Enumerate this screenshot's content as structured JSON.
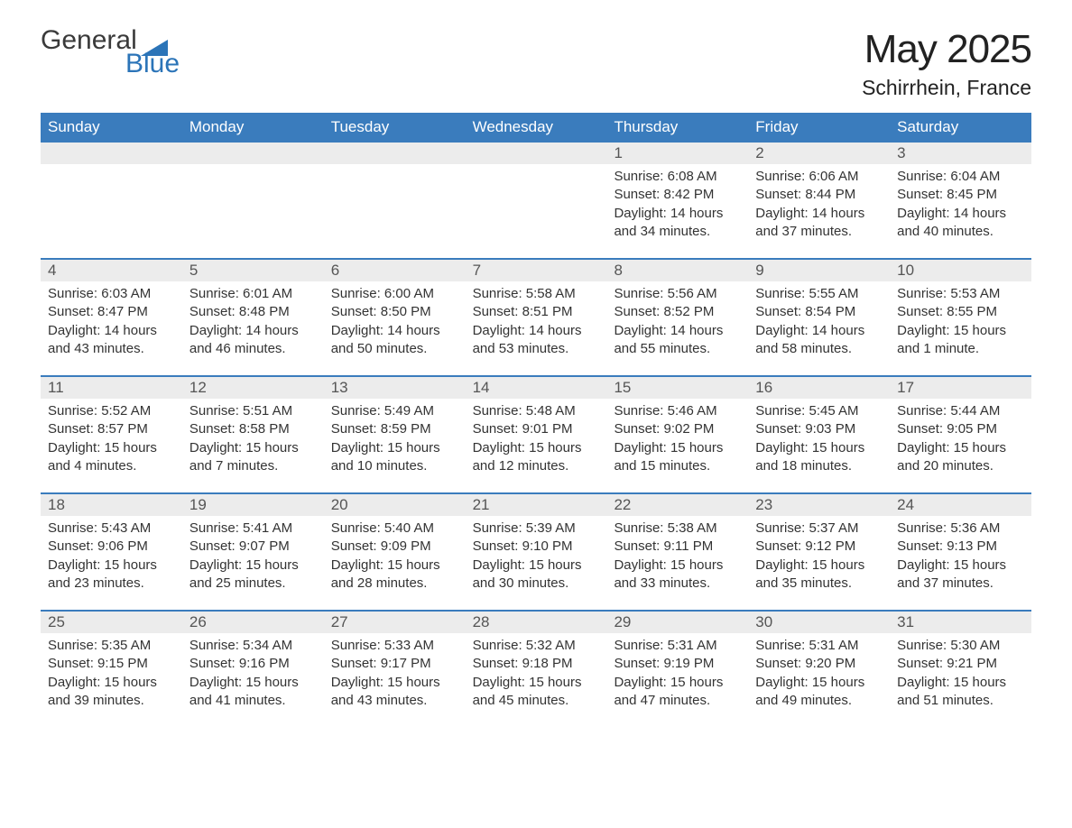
{
  "logo": {
    "word1": "General",
    "word2": "Blue"
  },
  "title": "May 2025",
  "location": "Schirrhein, France",
  "colors": {
    "header_bg": "#3a7cbd",
    "header_text": "#ffffff",
    "day_number_bg": "#ececec",
    "day_number_text": "#555555",
    "week_rule": "#3a7cbd",
    "body_text": "#333333",
    "logo_gray": "#3a3a3a",
    "logo_blue": "#2b74b8",
    "page_bg": "#ffffff"
  },
  "weekdays": [
    "Sunday",
    "Monday",
    "Tuesday",
    "Wednesday",
    "Thursday",
    "Friday",
    "Saturday"
  ],
  "weeks": [
    [
      {
        "n": "",
        "sunrise": "",
        "sunset": "",
        "daylight": ""
      },
      {
        "n": "",
        "sunrise": "",
        "sunset": "",
        "daylight": ""
      },
      {
        "n": "",
        "sunrise": "",
        "sunset": "",
        "daylight": ""
      },
      {
        "n": "",
        "sunrise": "",
        "sunset": "",
        "daylight": ""
      },
      {
        "n": "1",
        "sunrise": "Sunrise: 6:08 AM",
        "sunset": "Sunset: 8:42 PM",
        "daylight": "Daylight: 14 hours and 34 minutes."
      },
      {
        "n": "2",
        "sunrise": "Sunrise: 6:06 AM",
        "sunset": "Sunset: 8:44 PM",
        "daylight": "Daylight: 14 hours and 37 minutes."
      },
      {
        "n": "3",
        "sunrise": "Sunrise: 6:04 AM",
        "sunset": "Sunset: 8:45 PM",
        "daylight": "Daylight: 14 hours and 40 minutes."
      }
    ],
    [
      {
        "n": "4",
        "sunrise": "Sunrise: 6:03 AM",
        "sunset": "Sunset: 8:47 PM",
        "daylight": "Daylight: 14 hours and 43 minutes."
      },
      {
        "n": "5",
        "sunrise": "Sunrise: 6:01 AM",
        "sunset": "Sunset: 8:48 PM",
        "daylight": "Daylight: 14 hours and 46 minutes."
      },
      {
        "n": "6",
        "sunrise": "Sunrise: 6:00 AM",
        "sunset": "Sunset: 8:50 PM",
        "daylight": "Daylight: 14 hours and 50 minutes."
      },
      {
        "n": "7",
        "sunrise": "Sunrise: 5:58 AM",
        "sunset": "Sunset: 8:51 PM",
        "daylight": "Daylight: 14 hours and 53 minutes."
      },
      {
        "n": "8",
        "sunrise": "Sunrise: 5:56 AM",
        "sunset": "Sunset: 8:52 PM",
        "daylight": "Daylight: 14 hours and 55 minutes."
      },
      {
        "n": "9",
        "sunrise": "Sunrise: 5:55 AM",
        "sunset": "Sunset: 8:54 PM",
        "daylight": "Daylight: 14 hours and 58 minutes."
      },
      {
        "n": "10",
        "sunrise": "Sunrise: 5:53 AM",
        "sunset": "Sunset: 8:55 PM",
        "daylight": "Daylight: 15 hours and 1 minute."
      }
    ],
    [
      {
        "n": "11",
        "sunrise": "Sunrise: 5:52 AM",
        "sunset": "Sunset: 8:57 PM",
        "daylight": "Daylight: 15 hours and 4 minutes."
      },
      {
        "n": "12",
        "sunrise": "Sunrise: 5:51 AM",
        "sunset": "Sunset: 8:58 PM",
        "daylight": "Daylight: 15 hours and 7 minutes."
      },
      {
        "n": "13",
        "sunrise": "Sunrise: 5:49 AM",
        "sunset": "Sunset: 8:59 PM",
        "daylight": "Daylight: 15 hours and 10 minutes."
      },
      {
        "n": "14",
        "sunrise": "Sunrise: 5:48 AM",
        "sunset": "Sunset: 9:01 PM",
        "daylight": "Daylight: 15 hours and 12 minutes."
      },
      {
        "n": "15",
        "sunrise": "Sunrise: 5:46 AM",
        "sunset": "Sunset: 9:02 PM",
        "daylight": "Daylight: 15 hours and 15 minutes."
      },
      {
        "n": "16",
        "sunrise": "Sunrise: 5:45 AM",
        "sunset": "Sunset: 9:03 PM",
        "daylight": "Daylight: 15 hours and 18 minutes."
      },
      {
        "n": "17",
        "sunrise": "Sunrise: 5:44 AM",
        "sunset": "Sunset: 9:05 PM",
        "daylight": "Daylight: 15 hours and 20 minutes."
      }
    ],
    [
      {
        "n": "18",
        "sunrise": "Sunrise: 5:43 AM",
        "sunset": "Sunset: 9:06 PM",
        "daylight": "Daylight: 15 hours and 23 minutes."
      },
      {
        "n": "19",
        "sunrise": "Sunrise: 5:41 AM",
        "sunset": "Sunset: 9:07 PM",
        "daylight": "Daylight: 15 hours and 25 minutes."
      },
      {
        "n": "20",
        "sunrise": "Sunrise: 5:40 AM",
        "sunset": "Sunset: 9:09 PM",
        "daylight": "Daylight: 15 hours and 28 minutes."
      },
      {
        "n": "21",
        "sunrise": "Sunrise: 5:39 AM",
        "sunset": "Sunset: 9:10 PM",
        "daylight": "Daylight: 15 hours and 30 minutes."
      },
      {
        "n": "22",
        "sunrise": "Sunrise: 5:38 AM",
        "sunset": "Sunset: 9:11 PM",
        "daylight": "Daylight: 15 hours and 33 minutes."
      },
      {
        "n": "23",
        "sunrise": "Sunrise: 5:37 AM",
        "sunset": "Sunset: 9:12 PM",
        "daylight": "Daylight: 15 hours and 35 minutes."
      },
      {
        "n": "24",
        "sunrise": "Sunrise: 5:36 AM",
        "sunset": "Sunset: 9:13 PM",
        "daylight": "Daylight: 15 hours and 37 minutes."
      }
    ],
    [
      {
        "n": "25",
        "sunrise": "Sunrise: 5:35 AM",
        "sunset": "Sunset: 9:15 PM",
        "daylight": "Daylight: 15 hours and 39 minutes."
      },
      {
        "n": "26",
        "sunrise": "Sunrise: 5:34 AM",
        "sunset": "Sunset: 9:16 PM",
        "daylight": "Daylight: 15 hours and 41 minutes."
      },
      {
        "n": "27",
        "sunrise": "Sunrise: 5:33 AM",
        "sunset": "Sunset: 9:17 PM",
        "daylight": "Daylight: 15 hours and 43 minutes."
      },
      {
        "n": "28",
        "sunrise": "Sunrise: 5:32 AM",
        "sunset": "Sunset: 9:18 PM",
        "daylight": "Daylight: 15 hours and 45 minutes."
      },
      {
        "n": "29",
        "sunrise": "Sunrise: 5:31 AM",
        "sunset": "Sunset: 9:19 PM",
        "daylight": "Daylight: 15 hours and 47 minutes."
      },
      {
        "n": "30",
        "sunrise": "Sunrise: 5:31 AM",
        "sunset": "Sunset: 9:20 PM",
        "daylight": "Daylight: 15 hours and 49 minutes."
      },
      {
        "n": "31",
        "sunrise": "Sunrise: 5:30 AM",
        "sunset": "Sunset: 9:21 PM",
        "daylight": "Daylight: 15 hours and 51 minutes."
      }
    ]
  ]
}
